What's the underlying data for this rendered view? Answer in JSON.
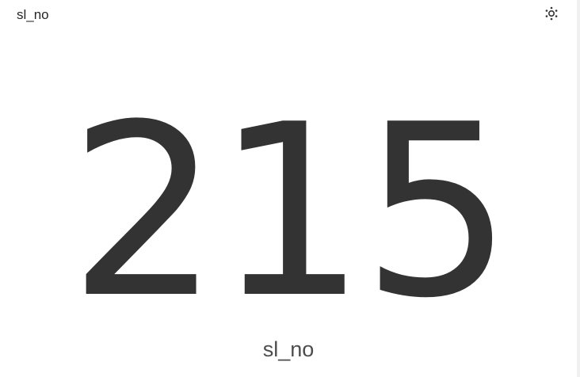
{
  "card": {
    "title": "sl_no",
    "settings_icon": "gear-dots-icon"
  },
  "metric": {
    "value": "215",
    "label": "sl_no"
  },
  "colors": {
    "value_text": "#333333",
    "label_text": "#4d4d4d",
    "title_text": "#262626",
    "background": "#ffffff"
  }
}
